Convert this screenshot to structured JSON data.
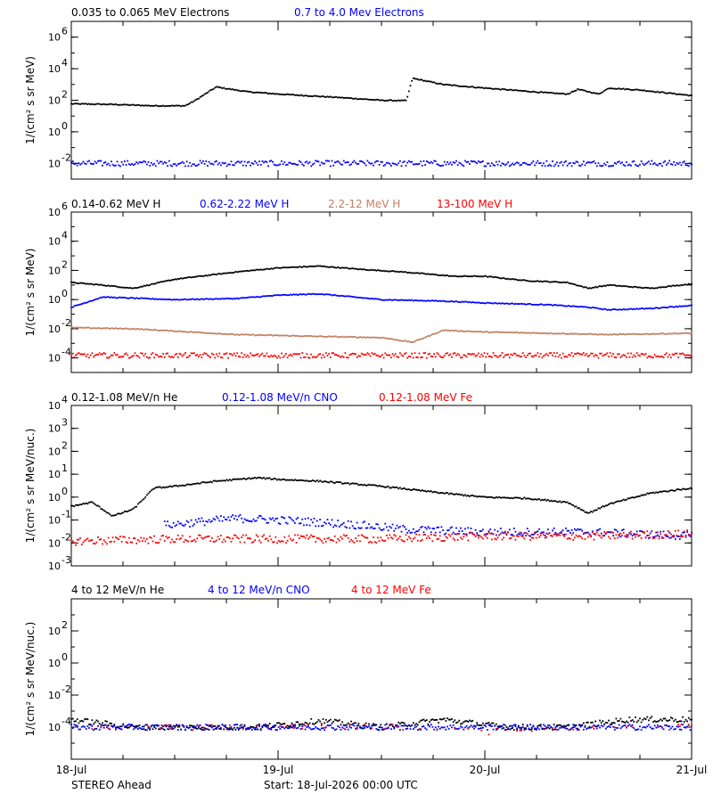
{
  "chart_data": [
    {
      "type": "scatter",
      "ylabel": "1/(cm² s sr MeV)",
      "yscale": "log",
      "ylim": [
        0.001,
        10000000
      ],
      "y_ticks": [
        {
          "v": 0.01,
          "base": "10",
          "exp": "-2"
        },
        {
          "v": 1,
          "base": "10",
          "exp": "0"
        },
        {
          "v": 100,
          "base": "10",
          "exp": "2"
        },
        {
          "v": 10000,
          "base": "10",
          "exp": "4"
        },
        {
          "v": 1000000,
          "base": "10",
          "exp": "6"
        }
      ],
      "series": [
        {
          "name": "0.035 to 0.065 MeV Electrons",
          "color": "#000000",
          "points": [
            [
              0,
              60
            ],
            [
              0.2,
              55
            ],
            [
              0.4,
              45
            ],
            [
              0.55,
              45
            ],
            [
              0.6,
              100
            ],
            [
              0.7,
              700
            ],
            [
              0.85,
              350
            ],
            [
              1.0,
              250
            ],
            [
              1.3,
              150
            ],
            [
              1.5,
              100
            ],
            [
              1.62,
              95
            ],
            [
              1.65,
              2500
            ],
            [
              1.8,
              1000
            ],
            [
              2.0,
              600
            ],
            [
              2.3,
              300
            ],
            [
              2.4,
              250
            ],
            [
              2.45,
              500
            ],
            [
              2.55,
              250
            ],
            [
              2.6,
              600
            ],
            [
              2.75,
              450
            ],
            [
              3.0,
              200
            ]
          ]
        },
        {
          "name": "0.7 to 4.0 Mev Electrons",
          "color": "#0000ff",
          "points": [
            [
              0,
              0.01
            ],
            [
              0.5,
              0.01
            ],
            [
              1.0,
              0.01
            ],
            [
              1.5,
              0.01
            ],
            [
              2.0,
              0.01
            ],
            [
              2.5,
              0.01
            ],
            [
              3.0,
              0.01
            ]
          ]
        }
      ]
    },
    {
      "type": "scatter",
      "ylabel": "1/(cm² s sr MeV)",
      "yscale": "log",
      "ylim": [
        1e-05,
        1000000
      ],
      "y_ticks": [
        {
          "v": 0.0001,
          "base": "10",
          "exp": "-4"
        },
        {
          "v": 0.01,
          "base": "10",
          "exp": "-2"
        },
        {
          "v": 1,
          "base": "10",
          "exp": "0"
        },
        {
          "v": 100,
          "base": "10",
          "exp": "2"
        },
        {
          "v": 10000,
          "base": "10",
          "exp": "4"
        },
        {
          "v": 1000000,
          "base": "10",
          "exp": "6"
        }
      ],
      "series": [
        {
          "name": "0.14-0.62 MeV H",
          "color": "#000000",
          "points": [
            [
              0,
              15
            ],
            [
              0.15,
              10
            ],
            [
              0.3,
              6
            ],
            [
              0.5,
              25
            ],
            [
              0.8,
              80
            ],
            [
              1.0,
              150
            ],
            [
              1.2,
              200
            ],
            [
              1.4,
              120
            ],
            [
              1.6,
              80
            ],
            [
              1.85,
              40
            ],
            [
              2.0,
              40
            ],
            [
              2.2,
              20
            ],
            [
              2.4,
              15
            ],
            [
              2.5,
              6
            ],
            [
              2.6,
              10
            ],
            [
              2.8,
              6
            ],
            [
              3.0,
              12
            ]
          ]
        },
        {
          "name": "0.62-2.22 MeV H",
          "color": "#0000ff",
          "points": [
            [
              0,
              0.3
            ],
            [
              0.15,
              1.5
            ],
            [
              0.5,
              1.0
            ],
            [
              0.8,
              1.2
            ],
            [
              1.0,
              2.0
            ],
            [
              1.2,
              2.5
            ],
            [
              1.5,
              1.0
            ],
            [
              1.8,
              0.8
            ],
            [
              2.0,
              0.6
            ],
            [
              2.3,
              0.45
            ],
            [
              2.5,
              0.3
            ],
            [
              2.6,
              0.2
            ],
            [
              2.8,
              0.25
            ],
            [
              3.0,
              0.4
            ]
          ]
        },
        {
          "name": "2.2-12 MeV H",
          "color": "#c08060",
          "points": [
            [
              0,
              0.012
            ],
            [
              0.3,
              0.01
            ],
            [
              0.5,
              0.007
            ],
            [
              0.8,
              0.004
            ],
            [
              1.0,
              0.0035
            ],
            [
              1.2,
              0.003
            ],
            [
              1.5,
              0.0025
            ],
            [
              1.65,
              0.0012
            ],
            [
              1.8,
              0.008
            ],
            [
              2.0,
              0.006
            ],
            [
              2.3,
              0.005
            ],
            [
              2.6,
              0.004
            ],
            [
              3.0,
              0.005
            ]
          ]
        },
        {
          "name": "13-100 MeV H",
          "color": "#ff0000",
          "points": [
            [
              0,
              0.00015
            ],
            [
              0.5,
              0.00015
            ],
            [
              1.0,
              0.00015
            ],
            [
              1.5,
              0.00015
            ],
            [
              2.0,
              0.00015
            ],
            [
              2.5,
              0.00015
            ],
            [
              3.0,
              0.00015
            ]
          ]
        }
      ]
    },
    {
      "type": "scatter",
      "ylabel": "1/(cm² s sr MeV/nuc.)",
      "yscale": "log",
      "ylim": [
        0.001,
        10000
      ],
      "y_ticks": [
        {
          "v": 0.001,
          "base": "10",
          "exp": "-3"
        },
        {
          "v": 0.01,
          "base": "10",
          "exp": "-2"
        },
        {
          "v": 0.1,
          "base": "10",
          "exp": "-1"
        },
        {
          "v": 1,
          "base": "10",
          "exp": "0"
        },
        {
          "v": 10,
          "base": "10",
          "exp": "1"
        },
        {
          "v": 100,
          "base": "10",
          "exp": "2"
        },
        {
          "v": 1000,
          "base": "10",
          "exp": "3"
        },
        {
          "v": 10000,
          "base": "10",
          "exp": "4"
        }
      ],
      "series": [
        {
          "name": "0.12-1.08 MeV/n He",
          "color": "#000000",
          "points": [
            [
              0,
              0.4
            ],
            [
              0.1,
              0.6
            ],
            [
              0.2,
              0.15
            ],
            [
              0.3,
              0.3
            ],
            [
              0.4,
              2.5
            ],
            [
              0.5,
              3
            ],
            [
              0.7,
              5
            ],
            [
              0.9,
              7
            ],
            [
              1.0,
              6
            ],
            [
              1.2,
              5
            ],
            [
              1.5,
              3
            ],
            [
              1.8,
              1.5
            ],
            [
              2.0,
              1.0
            ],
            [
              2.2,
              0.9
            ],
            [
              2.4,
              0.6
            ],
            [
              2.5,
              0.2
            ],
            [
              2.6,
              0.5
            ],
            [
              2.8,
              1.5
            ],
            [
              3.0,
              2.5
            ]
          ]
        },
        {
          "name": "0.12-1.08 MeV/n CNO",
          "color": "#0000ff",
          "points": [
            [
              0.45,
              0.06
            ],
            [
              0.6,
              0.08
            ],
            [
              0.8,
              0.12
            ],
            [
              1.0,
              0.1
            ],
            [
              1.2,
              0.08
            ],
            [
              1.4,
              0.06
            ],
            [
              1.6,
              0.04
            ],
            [
              2.0,
              0.03
            ],
            [
              2.5,
              0.03
            ],
            [
              3.0,
              0.02
            ]
          ]
        },
        {
          "name": "0.12-1.08 MeV Fe",
          "color": "#ff0000",
          "points": [
            [
              0,
              0.012
            ],
            [
              0.5,
              0.015
            ],
            [
              1.0,
              0.015
            ],
            [
              1.5,
              0.015
            ],
            [
              2.0,
              0.02
            ],
            [
              2.5,
              0.02
            ],
            [
              3.0,
              0.025
            ]
          ]
        }
      ]
    },
    {
      "type": "scatter",
      "ylabel": "1/(cm² s sr MeV/nuc.)",
      "yscale": "log",
      "ylim": [
        1e-06,
        10000
      ],
      "y_ticks": [
        {
          "v": 0.0001,
          "base": "10",
          "exp": "-4"
        },
        {
          "v": 0.01,
          "base": "10",
          "exp": "-2"
        },
        {
          "v": 1,
          "base": "10",
          "exp": "0"
        },
        {
          "v": 100,
          "base": "10",
          "exp": "2"
        }
      ],
      "series": [
        {
          "name": "4 to 12 MeV/n He",
          "color": "#000000",
          "points": [
            [
              0,
              0.0003
            ],
            [
              0.3,
              0.0001
            ],
            [
              0.6,
              0.0001
            ],
            [
              0.9,
              0.0001
            ],
            [
              1.2,
              0.00025
            ],
            [
              1.5,
              0.0001
            ],
            [
              1.8,
              0.0003
            ],
            [
              2.1,
              0.0001
            ],
            [
              2.4,
              0.0001
            ],
            [
              2.7,
              0.0003
            ],
            [
              3.0,
              0.0003
            ]
          ]
        },
        {
          "name": "4 to 12 MeV/n CNO",
          "color": "#0000ff",
          "points": [
            [
              0,
              0.0001
            ],
            [
              0.5,
              0.0001
            ],
            [
              1.0,
              0.0001
            ],
            [
              1.5,
              0.0001
            ],
            [
              2.0,
              0.0001
            ],
            [
              2.5,
              0.0001
            ],
            [
              3.0,
              0.0001
            ]
          ]
        },
        {
          "name": "4 to 12 MeV Fe",
          "color": "#ff0000",
          "points": [
            [
              0.9,
              0.0001
            ],
            [
              1.6,
              0.0001
            ],
            [
              2.0,
              5e-05
            ],
            [
              2.6,
              0.0001
            ],
            [
              3.0,
              0.0001
            ]
          ]
        }
      ]
    }
  ],
  "x_axis": {
    "range_days": [
      0,
      3
    ],
    "tick_labels": [
      "18-Jul",
      "19-Jul",
      "20-Jul",
      "21-Jul"
    ]
  },
  "footer": {
    "spacecraft": "STEREO Ahead",
    "start": "Start: 18-Jul-2026 00:00 UTC"
  }
}
